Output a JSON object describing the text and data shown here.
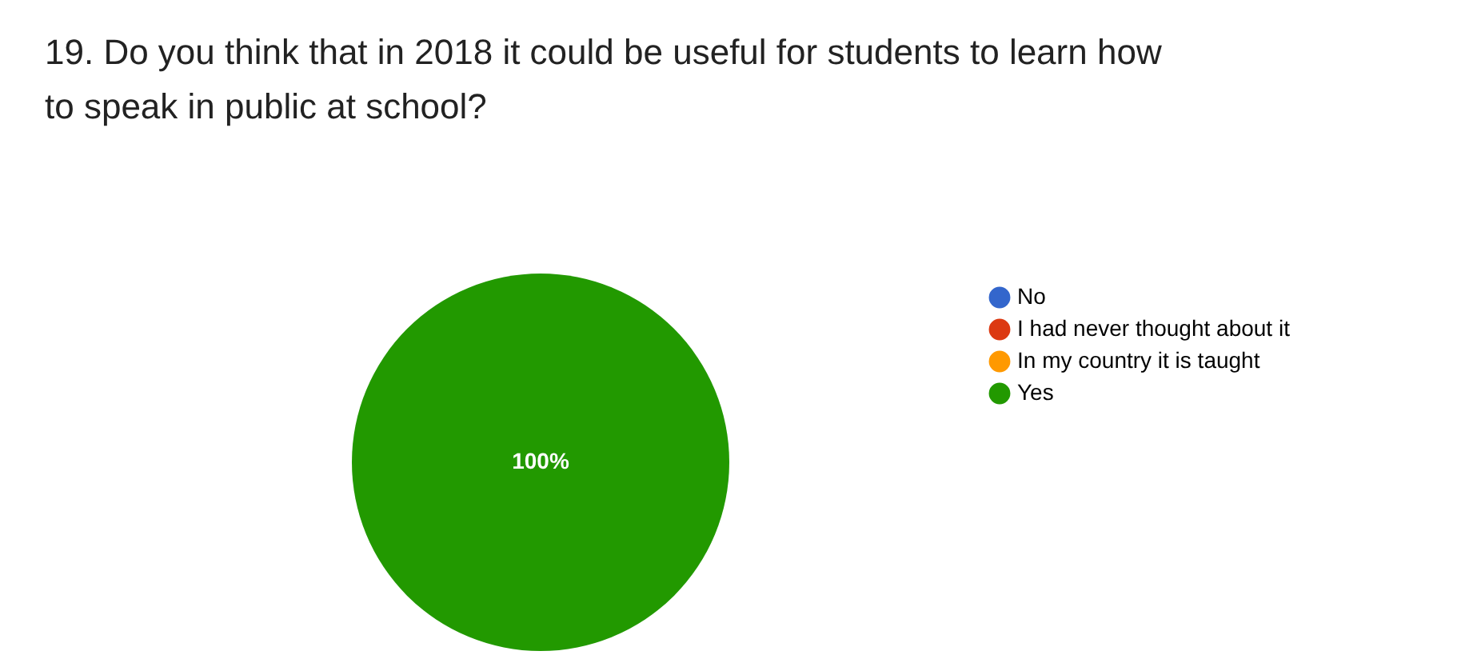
{
  "chart_data": {
    "type": "pie",
    "title": "19. Do you think that in 2018 it could be useful for students to learn how to speak in public at school?",
    "categories": [
      "No",
      "I had never thought about it",
      "In my country it is taught",
      "Yes"
    ],
    "values": [
      0,
      0,
      0,
      100
    ],
    "colors": [
      "#3366cc",
      "#dc3912",
      "#ff9900",
      "#229900"
    ],
    "value_labels": [
      null,
      null,
      null,
      "100%"
    ],
    "legend": "right"
  }
}
